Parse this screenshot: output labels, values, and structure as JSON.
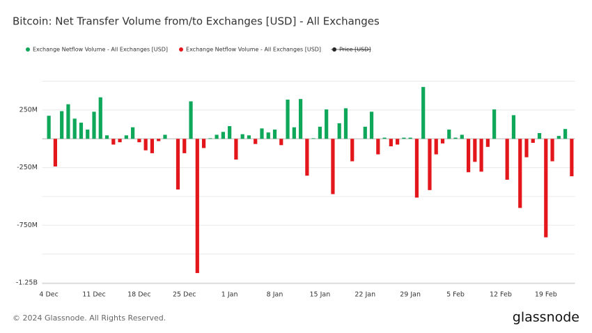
{
  "chart_data": {
    "type": "bar",
    "title": "Bitcoin: Net Transfer Volume from/to Exchanges [USD] - All Exchanges",
    "categories": [
      "4 Dec",
      null,
      null,
      null,
      null,
      null,
      null,
      "11 Dec",
      null,
      null,
      null,
      null,
      null,
      null,
      "18 Dec",
      null,
      null,
      null,
      null,
      null,
      null,
      "25 Dec",
      null,
      null,
      null,
      null,
      null,
      null,
      "1 Jan",
      null,
      null,
      null,
      null,
      null,
      null,
      "8 Jan",
      null,
      null,
      null,
      null,
      null,
      null,
      "15 Jan",
      null,
      null,
      null,
      null,
      null,
      null,
      "22 Jan",
      null,
      null,
      null,
      null,
      null,
      null,
      "29 Jan",
      null,
      null,
      null,
      null,
      null,
      null,
      "5 Feb",
      null,
      null,
      null,
      null,
      null,
      null,
      "12 Feb",
      null,
      null,
      null,
      null,
      null,
      null,
      "19 Feb",
      null,
      null,
      null,
      null
    ],
    "series": [
      {
        "name": "Exchange Netflow Volume - All Exchanges [USD]",
        "color": "#0fa85a",
        "values": [
          200000000,
          null,
          240000000,
          300000000,
          175000000,
          140000000,
          80000000,
          235000000,
          360000000,
          30000000,
          null,
          null,
          30000000,
          100000000,
          null,
          null,
          null,
          null,
          35000000,
          0,
          null,
          null,
          325000000,
          null,
          null,
          5000000,
          35000000,
          60000000,
          110000000,
          null,
          40000000,
          30000000,
          null,
          90000000,
          55000000,
          80000000,
          null,
          340000000,
          100000000,
          345000000,
          null,
          5000000,
          105000000,
          255000000,
          null,
          135000000,
          265000000,
          null,
          0,
          105000000,
          235000000,
          null,
          10000000,
          null,
          null,
          10000000,
          10000000,
          null,
          450000000,
          null,
          null,
          null,
          80000000,
          10000000,
          35000000,
          null,
          null,
          null,
          null,
          255000000,
          0,
          null,
          205000000,
          null,
          null,
          null,
          50000000,
          null,
          null,
          25000000,
          85000000,
          null
        ]
      },
      {
        "name": "Exchange Netflow Volume - All Exchanges [USD]",
        "color": "#e3171b",
        "values": [
          null,
          -240000000,
          null,
          null,
          null,
          null,
          null,
          null,
          null,
          null,
          -50000000,
          -30000000,
          null,
          null,
          -30000000,
          -100000000,
          -125000000,
          -20000000,
          null,
          null,
          -440000000,
          -125000000,
          null,
          -1165000000,
          -80000000,
          null,
          null,
          null,
          null,
          -180000000,
          null,
          null,
          -45000000,
          null,
          null,
          null,
          -55000000,
          null,
          null,
          null,
          -320000000,
          null,
          null,
          null,
          -480000000,
          null,
          null,
          -195000000,
          null,
          null,
          null,
          -135000000,
          null,
          -65000000,
          -50000000,
          null,
          null,
          -510000000,
          null,
          -445000000,
          -135000000,
          -40000000,
          null,
          null,
          null,
          -290000000,
          -200000000,
          -285000000,
          -70000000,
          null,
          null,
          -355000000,
          null,
          -600000000,
          -160000000,
          -35000000,
          null,
          -855000000,
          -195000000,
          null,
          null,
          -325000000
        ]
      }
    ],
    "hidden_series": [
      {
        "name": "Price [USD]",
        "color": "#222222"
      }
    ],
    "ylim": [
      -1250000000,
      600000000
    ],
    "yticks": [
      {
        "value": 250000000,
        "label": "250M"
      },
      {
        "value": -250000000,
        "label": "-250M"
      },
      {
        "value": -750000000,
        "label": "-750M"
      },
      {
        "value": -1250000000,
        "label": "-1.25B"
      }
    ],
    "ygrid": [
      500000000,
      250000000,
      0,
      -250000000,
      -500000000,
      -750000000,
      -1000000000,
      -1250000000
    ],
    "grid": true,
    "legend": "top-left",
    "footer": "© 2024 Glassnode. All Rights Reserved.",
    "brand": "glassnode"
  }
}
